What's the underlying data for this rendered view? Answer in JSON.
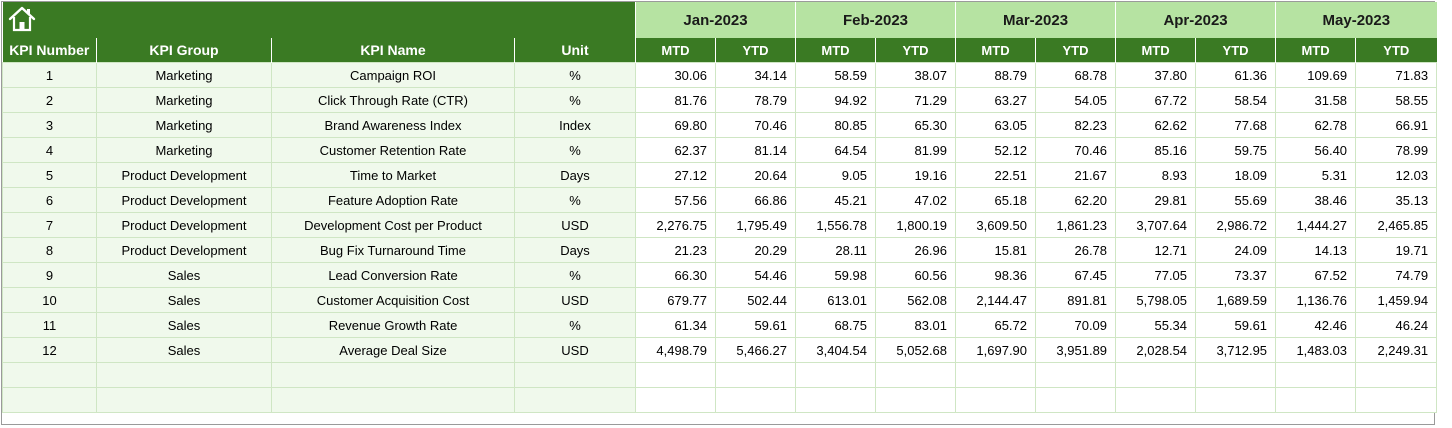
{
  "months": [
    "Jan-2023",
    "Feb-2023",
    "Mar-2023",
    "Apr-2023",
    "May-2023"
  ],
  "headers": {
    "kpi_number": "KPI Number",
    "kpi_group": "KPI Group",
    "kpi_name": "KPI Name",
    "unit": "Unit",
    "mtd": "MTD",
    "ytd": "YTD"
  },
  "rows": [
    {
      "num": "1",
      "group": "Marketing",
      "name": "Campaign ROI",
      "unit": "%",
      "values": [
        "30.06",
        "34.14",
        "58.59",
        "38.07",
        "88.79",
        "68.78",
        "37.80",
        "61.36",
        "109.69",
        "71.83"
      ]
    },
    {
      "num": "2",
      "group": "Marketing",
      "name": "Click Through Rate (CTR)",
      "unit": "%",
      "values": [
        "81.76",
        "78.79",
        "94.92",
        "71.29",
        "63.27",
        "54.05",
        "67.72",
        "58.54",
        "31.58",
        "58.55"
      ]
    },
    {
      "num": "3",
      "group": "Marketing",
      "name": "Brand Awareness Index",
      "unit": "Index",
      "values": [
        "69.80",
        "70.46",
        "80.85",
        "65.30",
        "63.05",
        "82.23",
        "62.62",
        "77.68",
        "62.78",
        "66.91"
      ]
    },
    {
      "num": "4",
      "group": "Marketing",
      "name": "Customer Retention Rate",
      "unit": "%",
      "values": [
        "62.37",
        "81.14",
        "64.54",
        "81.99",
        "52.12",
        "70.46",
        "85.16",
        "59.75",
        "56.40",
        "78.99"
      ]
    },
    {
      "num": "5",
      "group": "Product Development",
      "name": "Time to Market",
      "unit": "Days",
      "values": [
        "27.12",
        "20.64",
        "9.05",
        "19.16",
        "22.51",
        "21.67",
        "8.93",
        "18.09",
        "5.31",
        "12.03"
      ]
    },
    {
      "num": "6",
      "group": "Product Development",
      "name": "Feature Adoption Rate",
      "unit": "%",
      "values": [
        "57.56",
        "66.86",
        "45.21",
        "47.02",
        "65.18",
        "62.20",
        "29.81",
        "55.69",
        "38.46",
        "35.13"
      ]
    },
    {
      "num": "7",
      "group": "Product Development",
      "name": "Development Cost per Product",
      "unit": "USD",
      "values": [
        "2,276.75",
        "1,795.49",
        "1,556.78",
        "1,800.19",
        "3,609.50",
        "1,861.23",
        "3,707.64",
        "2,986.72",
        "1,444.27",
        "2,465.85"
      ]
    },
    {
      "num": "8",
      "group": "Product Development",
      "name": "Bug Fix Turnaround Time",
      "unit": "Days",
      "values": [
        "21.23",
        "20.29",
        "28.11",
        "26.96",
        "15.81",
        "26.78",
        "12.71",
        "24.09",
        "14.13",
        "19.71"
      ]
    },
    {
      "num": "9",
      "group": "Sales",
      "name": "Lead Conversion Rate",
      "unit": "%",
      "values": [
        "66.30",
        "54.46",
        "59.98",
        "60.56",
        "98.36",
        "67.45",
        "77.05",
        "73.37",
        "67.52",
        "74.79"
      ]
    },
    {
      "num": "10",
      "group": "Sales",
      "name": "Customer Acquisition Cost",
      "unit": "USD",
      "values": [
        "679.77",
        "502.44",
        "613.01",
        "562.08",
        "2,144.47",
        "891.81",
        "5,798.05",
        "1,689.59",
        "1,136.76",
        "1,459.94"
      ]
    },
    {
      "num": "11",
      "group": "Sales",
      "name": "Revenue Growth Rate",
      "unit": "%",
      "values": [
        "61.34",
        "59.61",
        "68.75",
        "83.01",
        "65.72",
        "70.09",
        "55.34",
        "59.61",
        "42.46",
        "46.24"
      ]
    },
    {
      "num": "12",
      "group": "Sales",
      "name": "Average Deal Size",
      "unit": "USD",
      "values": [
        "4,498.79",
        "5,466.27",
        "3,404.54",
        "5,052.68",
        "1,697.90",
        "3,951.89",
        "2,028.54",
        "3,712.95",
        "1,483.03",
        "2,249.31"
      ]
    }
  ],
  "empty_rows": 2,
  "icons": {
    "home": "home-icon"
  },
  "colors": {
    "header_green": "#3a7a23",
    "month_green": "#b6e3a2",
    "label_fill": "#f0f9ec",
    "grid": "#cfe6c4"
  }
}
